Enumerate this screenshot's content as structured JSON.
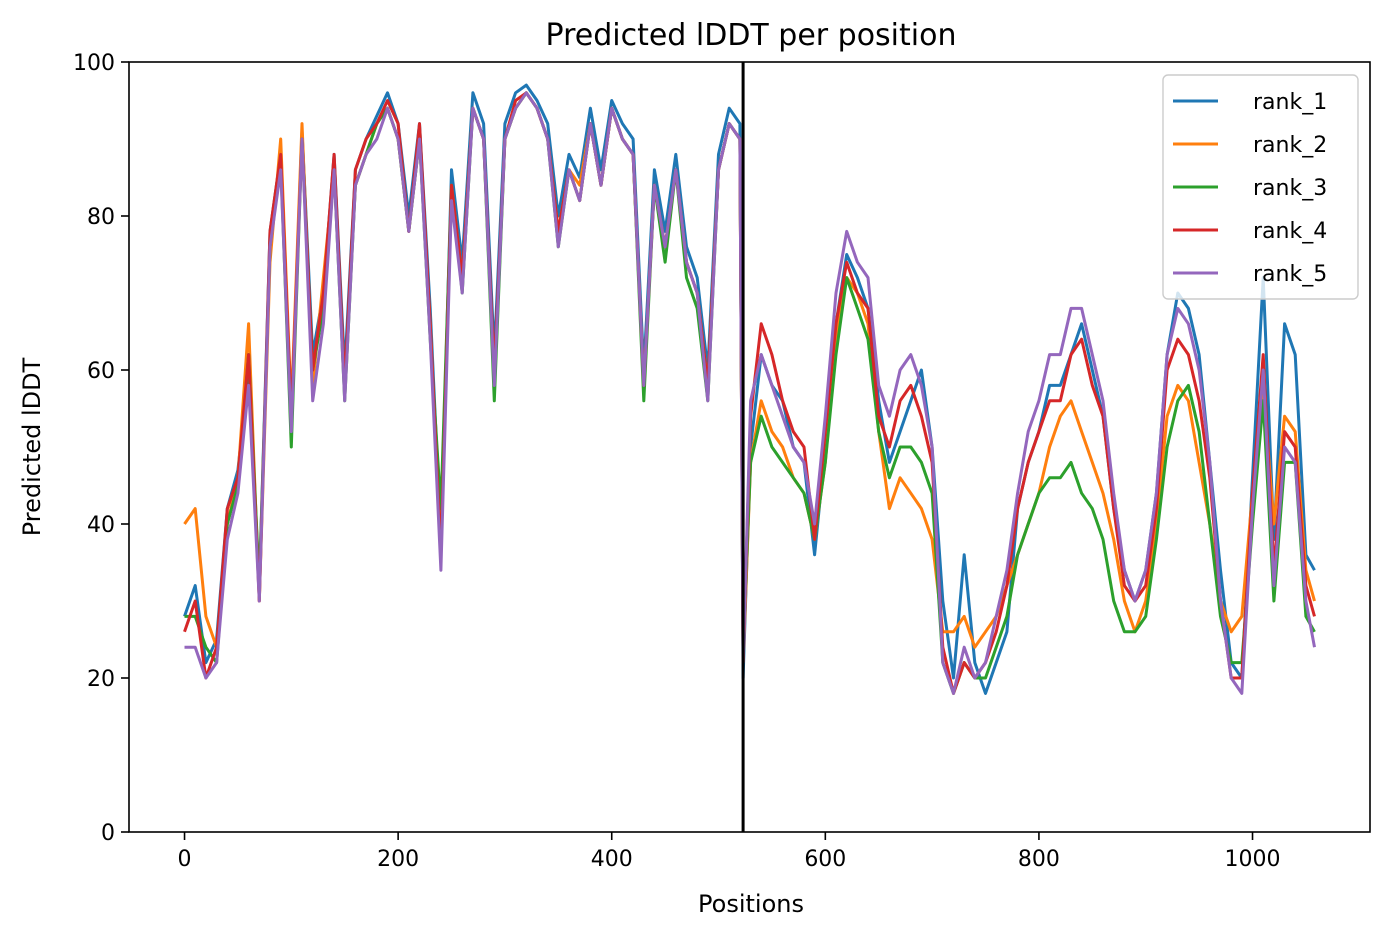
{
  "chart_data": {
    "type": "line",
    "title": "Predicted lDDT per position",
    "xlabel": "Positions",
    "ylabel": "Predicted lDDT",
    "xlim": [
      -52,
      1110
    ],
    "ylim": [
      0,
      100
    ],
    "xticks": [
      0,
      200,
      400,
      600,
      800,
      1000
    ],
    "yticks": [
      0,
      20,
      40,
      60,
      80,
      100
    ],
    "grid": false,
    "legend_position": "top-right",
    "vline": 523,
    "x_sampled": [
      0,
      10,
      20,
      30,
      40,
      50,
      60,
      70,
      80,
      90,
      100,
      110,
      120,
      130,
      140,
      150,
      160,
      170,
      180,
      190,
      200,
      210,
      220,
      230,
      240,
      250,
      260,
      270,
      280,
      290,
      300,
      310,
      320,
      330,
      340,
      350,
      360,
      370,
      380,
      390,
      400,
      410,
      420,
      430,
      440,
      450,
      460,
      470,
      480,
      490,
      500,
      510,
      520,
      523,
      530,
      540,
      550,
      560,
      570,
      580,
      590,
      600,
      610,
      620,
      630,
      640,
      650,
      660,
      670,
      680,
      690,
      700,
      710,
      720,
      730,
      740,
      750,
      760,
      770,
      780,
      790,
      800,
      810,
      820,
      830,
      840,
      850,
      860,
      870,
      880,
      890,
      900,
      910,
      920,
      930,
      940,
      950,
      960,
      970,
      980,
      990,
      1000,
      1010,
      1020,
      1030,
      1040,
      1050,
      1058
    ],
    "series": [
      {
        "name": "rank_1",
        "color": "#1f77b4",
        "values": [
          28,
          32,
          22,
          25,
          42,
          47,
          60,
          32,
          78,
          88,
          52,
          91,
          62,
          70,
          88,
          60,
          86,
          90,
          93,
          96,
          92,
          80,
          92,
          68,
          38,
          86,
          74,
          96,
          92,
          62,
          92,
          96,
          97,
          95,
          92,
          80,
          88,
          85,
          94,
          86,
          95,
          92,
          90,
          60,
          86,
          78,
          88,
          76,
          72,
          60,
          88,
          94,
          92,
          20,
          50,
          62,
          58,
          56,
          50,
          48,
          36,
          50,
          66,
          75,
          72,
          68,
          56,
          48,
          52,
          56,
          60,
          50,
          30,
          20,
          36,
          22,
          18,
          22,
          26,
          42,
          48,
          52,
          58,
          58,
          62,
          66,
          60,
          54,
          42,
          34,
          30,
          34,
          44,
          62,
          70,
          68,
          62,
          48,
          34,
          22,
          20,
          46,
          72,
          38,
          66,
          62,
          36,
          34
        ]
      },
      {
        "name": "rank_2",
        "color": "#ff7f0e",
        "values": [
          40,
          42,
          28,
          24,
          40,
          46,
          66,
          30,
          74,
          90,
          55,
          92,
          58,
          72,
          86,
          58,
          84,
          88,
          92,
          94,
          90,
          78,
          90,
          66,
          36,
          84,
          72,
          94,
          90,
          58,
          90,
          94,
          96,
          94,
          90,
          78,
          86,
          84,
          92,
          84,
          94,
          90,
          88,
          58,
          84,
          76,
          86,
          74,
          70,
          58,
          86,
          92,
          90,
          22,
          48,
          56,
          52,
          50,
          46,
          44,
          38,
          48,
          64,
          72,
          70,
          66,
          52,
          42,
          46,
          44,
          42,
          38,
          26,
          26,
          28,
          24,
          26,
          28,
          32,
          36,
          40,
          44,
          50,
          54,
          56,
          52,
          48,
          44,
          38,
          30,
          26,
          30,
          40,
          54,
          58,
          56,
          48,
          40,
          30,
          26,
          28,
          44,
          58,
          40,
          54,
          52,
          34,
          30
        ]
      },
      {
        "name": "rank_3",
        "color": "#2ca02c",
        "values": [
          28,
          28,
          24,
          22,
          40,
          45,
          62,
          32,
          76,
          87,
          50,
          90,
          60,
          68,
          86,
          56,
          84,
          88,
          92,
          94,
          90,
          78,
          90,
          64,
          42,
          84,
          70,
          94,
          90,
          56,
          90,
          94,
          96,
          94,
          90,
          76,
          86,
          82,
          92,
          84,
          94,
          90,
          88,
          56,
          84,
          74,
          86,
          72,
          68,
          56,
          86,
          92,
          90,
          24,
          48,
          54,
          50,
          48,
          46,
          44,
          38,
          48,
          62,
          72,
          68,
          64,
          52,
          46,
          50,
          50,
          48,
          44,
          22,
          18,
          22,
          20,
          20,
          24,
          28,
          36,
          40,
          44,
          46,
          46,
          48,
          44,
          42,
          38,
          30,
          26,
          26,
          28,
          38,
          50,
          56,
          58,
          52,
          40,
          28,
          22,
          22,
          40,
          56,
          30,
          48,
          48,
          28,
          26
        ]
      },
      {
        "name": "rank_4",
        "color": "#d62728",
        "values": [
          26,
          30,
          20,
          24,
          42,
          46,
          62,
          30,
          78,
          88,
          54,
          90,
          60,
          70,
          88,
          58,
          86,
          90,
          92,
          95,
          92,
          78,
          92,
          66,
          36,
          84,
          72,
          94,
          90,
          60,
          90,
          95,
          96,
          94,
          90,
          78,
          86,
          82,
          92,
          84,
          94,
          90,
          88,
          58,
          84,
          76,
          86,
          74,
          70,
          58,
          86,
          92,
          90,
          22,
          54,
          66,
          62,
          56,
          52,
          50,
          38,
          52,
          66,
          74,
          70,
          68,
          54,
          50,
          56,
          58,
          54,
          48,
          24,
          18,
          22,
          20,
          22,
          26,
          32,
          42,
          48,
          52,
          56,
          56,
          62,
          64,
          58,
          54,
          42,
          32,
          30,
          32,
          42,
          60,
          64,
          62,
          56,
          46,
          30,
          20,
          20,
          44,
          62,
          34,
          52,
          50,
          32,
          28
        ]
      },
      {
        "name": "rank_5",
        "color": "#9467bd",
        "values": [
          24,
          24,
          20,
          22,
          38,
          44,
          58,
          30,
          76,
          86,
          52,
          90,
          56,
          66,
          86,
          56,
          84,
          88,
          90,
          94,
          90,
          78,
          90,
          64,
          34,
          82,
          70,
          94,
          90,
          58,
          90,
          94,
          96,
          94,
          90,
          76,
          86,
          82,
          92,
          84,
          94,
          90,
          88,
          58,
          84,
          76,
          86,
          74,
          70,
          56,
          86,
          92,
          90,
          22,
          56,
          62,
          58,
          54,
          50,
          48,
          40,
          54,
          70,
          78,
          74,
          72,
          58,
          54,
          60,
          62,
          58,
          50,
          22,
          18,
          24,
          20,
          22,
          28,
          34,
          44,
          52,
          56,
          62,
          62,
          68,
          68,
          62,
          56,
          44,
          34,
          30,
          34,
          44,
          62,
          68,
          66,
          60,
          48,
          30,
          20,
          18,
          42,
          60,
          32,
          50,
          48,
          30,
          24
        ]
      }
    ]
  }
}
